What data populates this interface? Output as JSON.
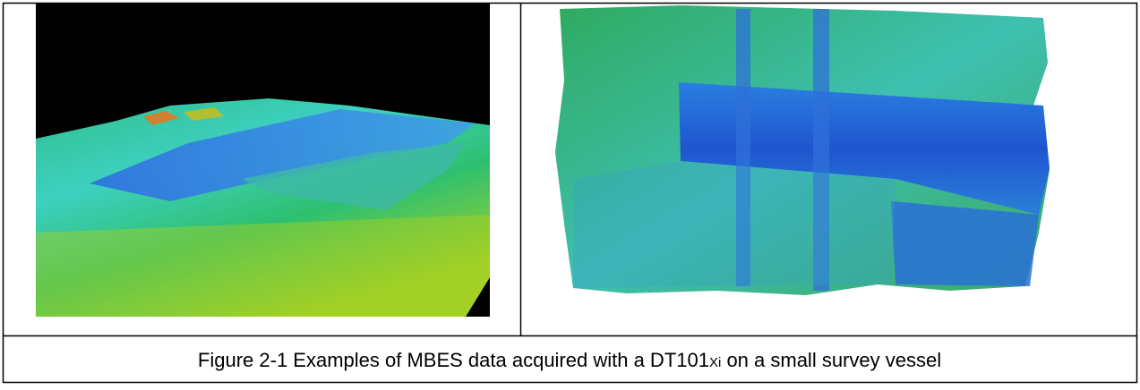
{
  "figure": {
    "caption": [
      "Figure 2-1 Examples of MBES data acquired with a DT101",
      "X",
      "i",
      " on a small survey vessel"
    ]
  }
}
